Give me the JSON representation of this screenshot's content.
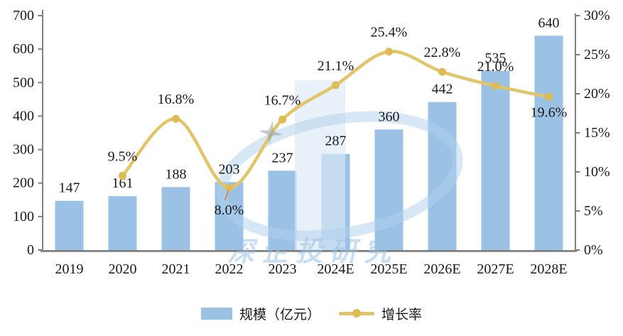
{
  "chart_data": {
    "type": "bar+line combo",
    "categories": [
      "2019",
      "2020",
      "2021",
      "2022",
      "2023",
      "2024E",
      "2025E",
      "2026E",
      "2027E",
      "2028E"
    ],
    "series": [
      {
        "name": "规模（亿元）",
        "type": "bar",
        "axis": "left",
        "color": "#9BC2E4",
        "values": [
          147,
          161,
          188,
          203,
          237,
          287,
          360,
          442,
          535,
          640
        ],
        "value_labels": [
          "147",
          "161",
          "188",
          "203",
          "237",
          "287",
          "360",
          "442",
          "535",
          "640"
        ]
      },
      {
        "name": "增长率",
        "type": "line",
        "axis": "right",
        "color": "#E2C469",
        "marker_color": "#DDBB55",
        "values": [
          null,
          9.5,
          16.8,
          8.0,
          16.7,
          21.1,
          25.4,
          22.8,
          21.0,
          19.6
        ],
        "point_labels": [
          "",
          "9.5%",
          "16.8%",
          "8.0%",
          "16.7%",
          "21.1%",
          "25.4%",
          "22.8%",
          "21.0%",
          "19.6%"
        ],
        "label_dy": [
          0,
          -27,
          -27,
          32,
          -27,
          -27,
          -27,
          -27,
          -27,
          22
        ]
      }
    ],
    "left_axis": {
      "min": 0,
      "max": 700,
      "step": 100,
      "ticks": [
        "0",
        "100",
        "200",
        "300",
        "400",
        "500",
        "600",
        "700"
      ]
    },
    "right_axis": {
      "min": 0,
      "max": 30,
      "step": 5,
      "ticks": [
        "0%",
        "5%",
        "10%",
        "15%",
        "20%",
        "25%",
        "30%"
      ]
    },
    "grid": false,
    "legend_position": "bottom-center",
    "colors": {
      "axis": "#7f7f7f",
      "text": "#1a1a1a",
      "watermark": "#9EC4E8"
    }
  },
  "watermark": {
    "text": "深企投研究"
  }
}
